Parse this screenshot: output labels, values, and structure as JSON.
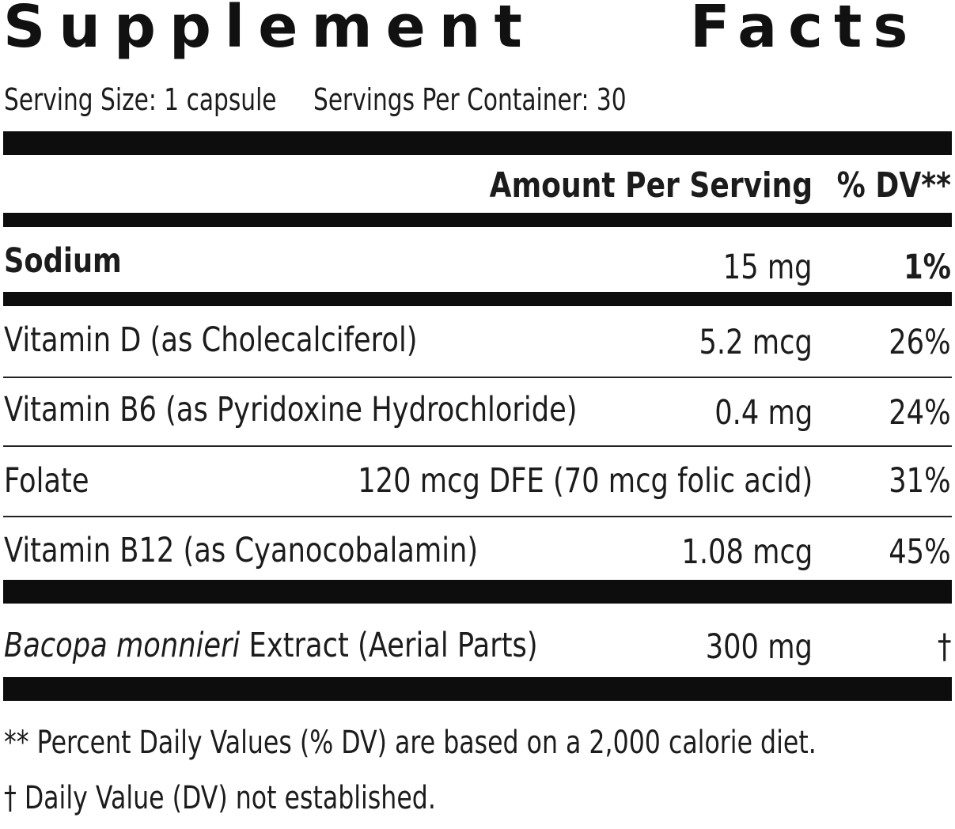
{
  "title": {
    "word1": "Supplement",
    "word2": "Facts"
  },
  "serving": {
    "size": "Serving Size: 1 capsule",
    "per_container": "Servings Per Container: 30"
  },
  "headers": {
    "amount": "Amount Per Serving",
    "dv": "% DV**"
  },
  "nutrients": [
    {
      "name": "Sodium",
      "amount": "15 mg",
      "dv": "1%"
    },
    {
      "name": "Vitamin D (as Cholecalciferol)",
      "amount": "5.2 mcg",
      "dv": "26%"
    },
    {
      "name": "Vitamin B6 (as Pyridoxine Hydrochloride)",
      "amount": "0.4 mg",
      "dv": "24%"
    },
    {
      "name": "Folate",
      "amount": "120 mcg DFE (70 mcg folic acid)",
      "dv": "31%"
    },
    {
      "name": "Vitamin B12 (as Cyanocobalamin)",
      "amount": "1.08 mcg",
      "dv": "45%"
    }
  ],
  "extract": {
    "name_italic": "Bacopa monnieri",
    "name_rest": " Extract (Aerial Parts)",
    "amount": "300 mg",
    "dv": "†"
  },
  "footnotes": {
    "dv_note": "** Percent Daily Values (% DV) are based on a 2,000 calorie diet.",
    "not_established": "† Daily Value (DV) not established."
  },
  "colors": {
    "ink": "#111111",
    "background": "#ffffff"
  }
}
